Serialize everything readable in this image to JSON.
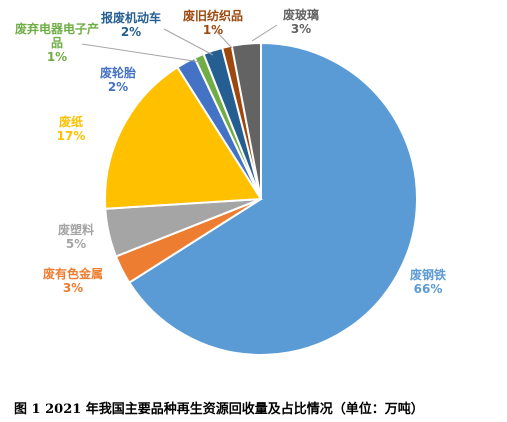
{
  "chart_data": {
    "type": "pie",
    "title": "",
    "start_angle_deg": 0,
    "direction": "clockwise",
    "legend": "none",
    "slices": [
      {
        "label": "废钢铁",
        "value": 66,
        "label_text": "66%",
        "color": "#5B9BD5"
      },
      {
        "label": "废有色金属",
        "value": 3,
        "label_text": "3%",
        "color": "#ED7D31"
      },
      {
        "label": "废塑料",
        "value": 5,
        "label_text": "5%",
        "color": "#A5A5A5"
      },
      {
        "label": "废纸",
        "value": 17,
        "label_text": "17%",
        "color": "#FFC000"
      },
      {
        "label": "废轮胎",
        "value": 2,
        "label_text": "2%",
        "color": "#4472C4"
      },
      {
        "label": "废弃电器电子产品",
        "value": 1,
        "label_text": "1%",
        "color": "#70AD47"
      },
      {
        "label": "报废机动车",
        "value": 2,
        "label_text": "2%",
        "color": "#255E91"
      },
      {
        "label": "废旧纺织品",
        "value": 1,
        "label_text": "1%",
        "color": "#9E480E"
      },
      {
        "label": "废玻璃",
        "value": 3,
        "label_text": "3%",
        "color": "#636363"
      }
    ]
  },
  "caption": "图 1  2021 年我国主要品种再生资源回收量及占比情况（单位：万吨）"
}
